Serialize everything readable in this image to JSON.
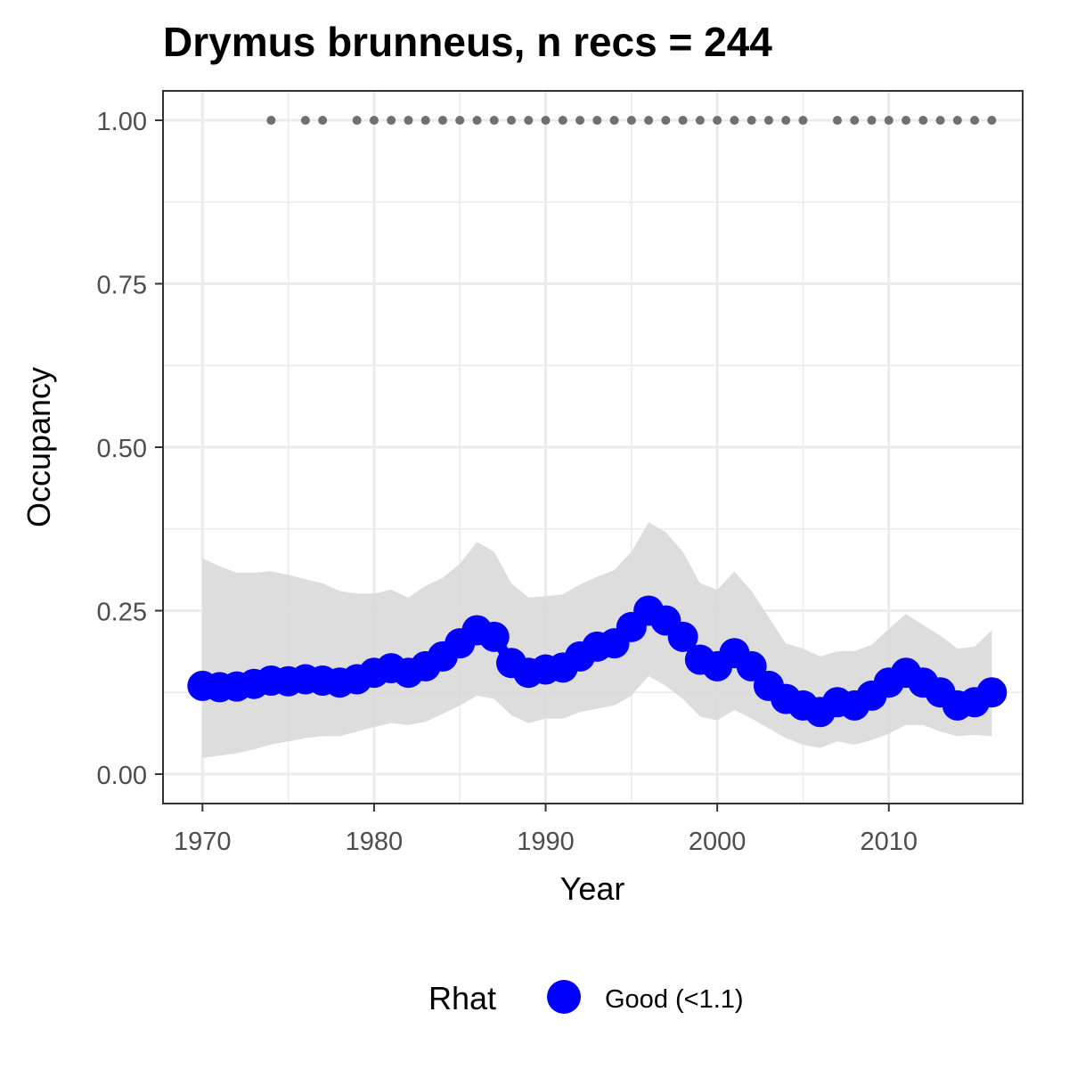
{
  "chart_data": {
    "type": "line",
    "title": "Drymus brunneus, n recs = 244",
    "xlabel": "Year",
    "ylabel": "Occupancy",
    "xlim": [
      1967.7,
      2017.8
    ],
    "ylim": [
      -0.045,
      1.045
    ],
    "x_ticks": [
      1970,
      1980,
      1990,
      2000,
      2010
    ],
    "x_tick_labels": [
      "1970",
      "1980",
      "1990",
      "2000",
      "2010"
    ],
    "y_ticks": [
      0,
      0.25,
      0.5,
      0.75,
      1
    ],
    "y_tick_labels": [
      "0.00",
      "0.25",
      "0.50",
      "0.75",
      "1.00"
    ],
    "grid": true,
    "legend": {
      "title": "Rhat",
      "position": "bottom",
      "entries": [
        {
          "label": "Good (<1.1)",
          "color": "#0000ff"
        }
      ]
    },
    "colors": {
      "mean": "#0000ff",
      "ribbon": "#d9d9d9",
      "records": "#707070",
      "panel_border": "#333333",
      "grid": "#ebebeb"
    },
    "series": [
      {
        "name": "Good (<1.1)",
        "x": [
          1970,
          1971,
          1972,
          1973,
          1974,
          1975,
          1976,
          1977,
          1978,
          1979,
          1980,
          1981,
          1982,
          1983,
          1984,
          1985,
          1986,
          1987,
          1988,
          1989,
          1990,
          1991,
          1992,
          1993,
          1994,
          1995,
          1996,
          1997,
          1998,
          1999,
          2000,
          2001,
          2002,
          2003,
          2004,
          2005,
          2006,
          2007,
          2008,
          2009,
          2010,
          2011,
          2012,
          2013,
          2014,
          2015,
          2016
        ],
        "y": [
          0.135,
          0.133,
          0.134,
          0.138,
          0.143,
          0.142,
          0.145,
          0.143,
          0.14,
          0.145,
          0.155,
          0.162,
          0.155,
          0.165,
          0.18,
          0.2,
          0.22,
          0.21,
          0.17,
          0.155,
          0.16,
          0.163,
          0.18,
          0.195,
          0.2,
          0.225,
          0.25,
          0.235,
          0.21,
          0.175,
          0.165,
          0.185,
          0.165,
          0.135,
          0.115,
          0.105,
          0.095,
          0.11,
          0.105,
          0.12,
          0.14,
          0.155,
          0.14,
          0.125,
          0.105,
          0.11,
          0.125
        ],
        "lower": [
          0.025,
          0.028,
          0.032,
          0.038,
          0.045,
          0.05,
          0.055,
          0.058,
          0.058,
          0.065,
          0.072,
          0.078,
          0.075,
          0.08,
          0.092,
          0.105,
          0.12,
          0.115,
          0.09,
          0.078,
          0.085,
          0.085,
          0.095,
          0.1,
          0.105,
          0.12,
          0.15,
          0.135,
          0.115,
          0.088,
          0.082,
          0.098,
          0.085,
          0.07,
          0.055,
          0.045,
          0.04,
          0.05,
          0.045,
          0.052,
          0.062,
          0.075,
          0.075,
          0.065,
          0.058,
          0.06,
          0.058
        ],
        "upper": [
          0.33,
          0.318,
          0.308,
          0.308,
          0.31,
          0.305,
          0.298,
          0.292,
          0.28,
          0.276,
          0.276,
          0.282,
          0.27,
          0.288,
          0.3,
          0.322,
          0.355,
          0.34,
          0.292,
          0.27,
          0.272,
          0.275,
          0.29,
          0.302,
          0.312,
          0.34,
          0.385,
          0.37,
          0.34,
          0.292,
          0.282,
          0.31,
          0.28,
          0.24,
          0.2,
          0.192,
          0.18,
          0.188,
          0.188,
          0.198,
          0.222,
          0.245,
          0.228,
          0.212,
          0.192,
          0.195,
          0.22
        ]
      }
    ],
    "records": {
      "y": 1.0,
      "x": [
        1974,
        1976,
        1977,
        1979,
        1980,
        1981,
        1982,
        1983,
        1984,
        1985,
        1986,
        1987,
        1988,
        1989,
        1990,
        1991,
        1992,
        1993,
        1994,
        1995,
        1996,
        1997,
        1998,
        1999,
        2000,
        2001,
        2002,
        2003,
        2004,
        2005,
        2007,
        2008,
        2009,
        2010,
        2011,
        2012,
        2013,
        2014,
        2015,
        2016
      ]
    }
  }
}
